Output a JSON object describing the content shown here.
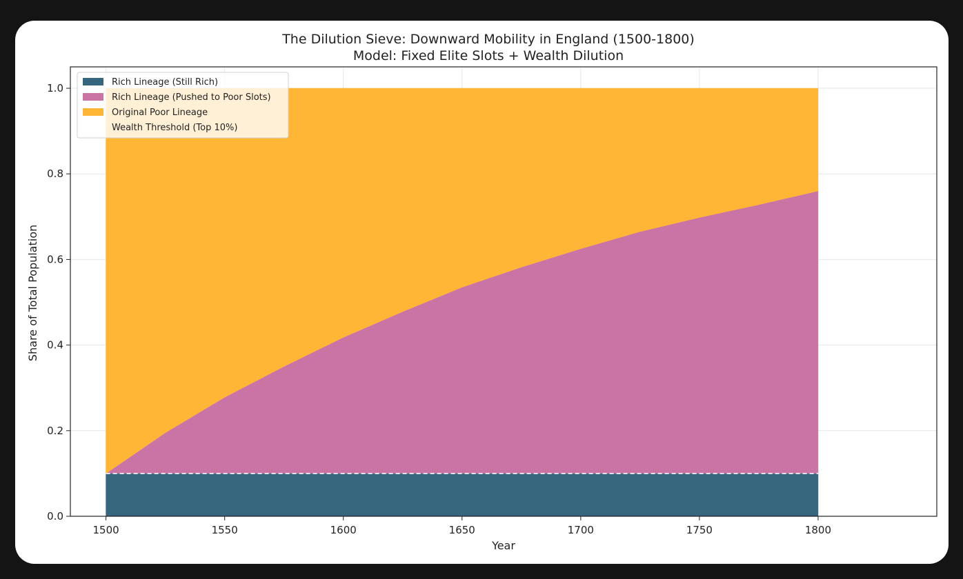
{
  "chart_data": {
    "type": "area",
    "title": "The Dilution Sieve: Downward Mobility in England (1500-1800)",
    "subtitle": "Model: Fixed Elite Slots + Wealth Dilution",
    "xlabel": "Year",
    "ylabel": "Share of Total Population",
    "xlim": [
      1485,
      1850
    ],
    "ylim": [
      0.0,
      1.05
    ],
    "xticks": [
      1500,
      1550,
      1600,
      1650,
      1700,
      1750,
      1800
    ],
    "yticks": [
      "0.0",
      "0.2",
      "0.4",
      "0.6",
      "0.8",
      "1.0"
    ],
    "grid": true,
    "legend_position": "upper-left",
    "stacked": true,
    "x": [
      1500,
      1525,
      1550,
      1575,
      1600,
      1625,
      1650,
      1675,
      1700,
      1725,
      1750,
      1775,
      1800
    ],
    "series": [
      {
        "name": "Rich Lineage (Still Rich)",
        "color": "#35667e",
        "values": [
          0.1,
          0.1,
          0.1,
          0.1,
          0.1,
          0.1,
          0.1,
          0.1,
          0.1,
          0.1,
          0.1,
          0.1,
          0.1
        ]
      },
      {
        "name": "Rich Lineage (Pushed to Poor Slots)",
        "color": "#c974a5",
        "values": [
          0.0,
          0.095,
          0.178,
          0.25,
          0.318,
          0.378,
          0.435,
          0.482,
          0.525,
          0.565,
          0.598,
          0.628,
          0.66
        ]
      },
      {
        "name": "Original Poor Lineage",
        "color": "#ffb636",
        "values": [
          0.9,
          0.805,
          0.722,
          0.65,
          0.582,
          0.522,
          0.465,
          0.418,
          0.375,
          0.335,
          0.302,
          0.272,
          0.24
        ]
      }
    ],
    "threshold": {
      "name": "Wealth Threshold (Top 10%)",
      "value": 0.1,
      "color": "#ffffff",
      "style": "dashed"
    }
  }
}
